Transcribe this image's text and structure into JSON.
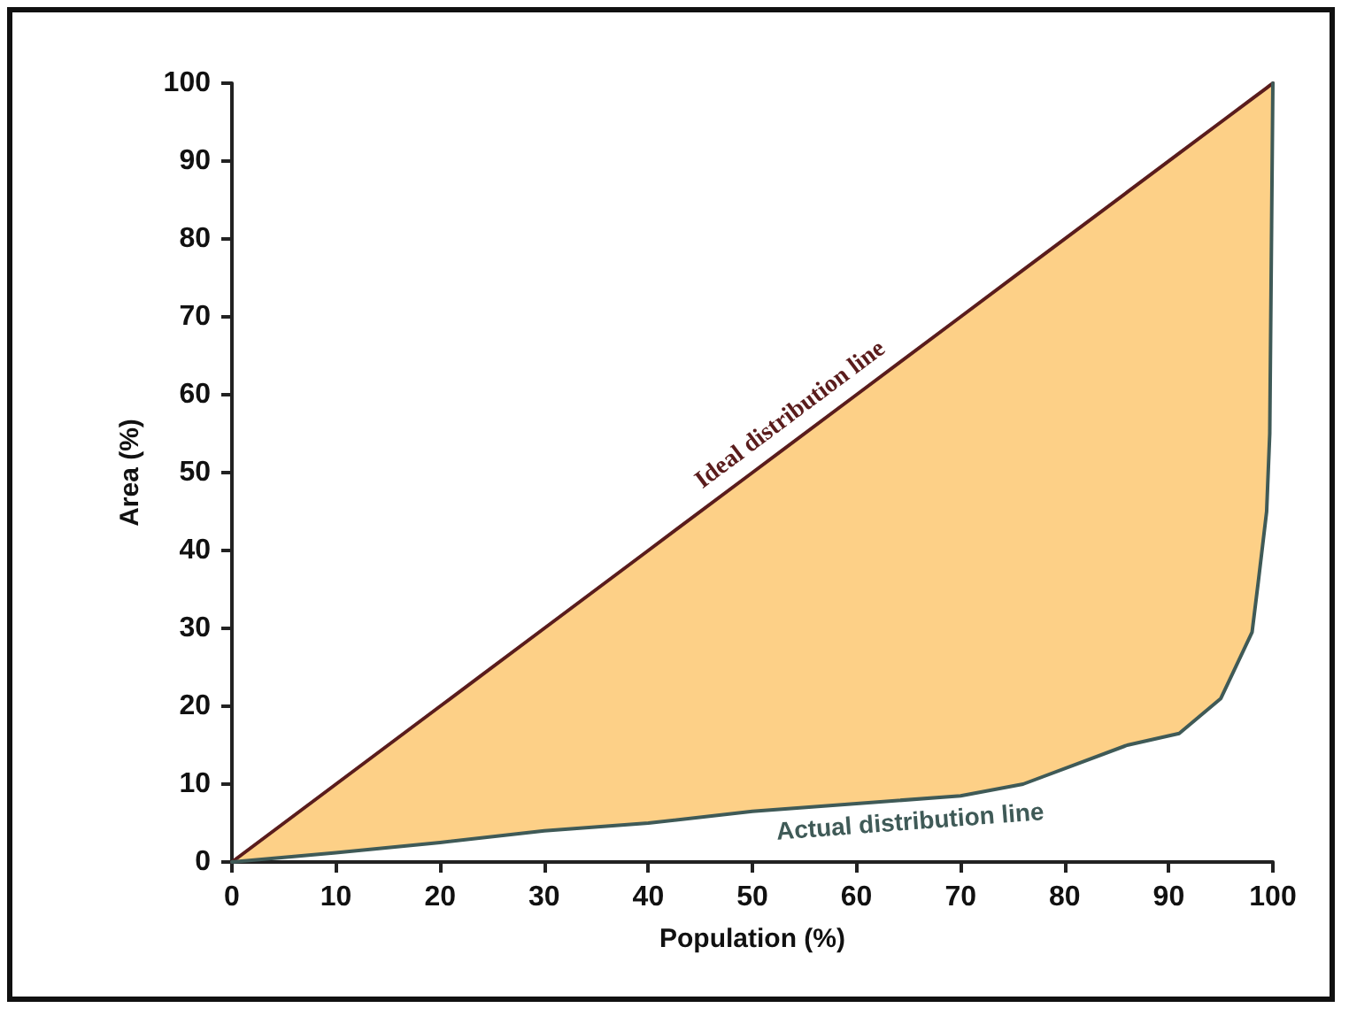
{
  "chart_data": {
    "type": "line",
    "xlabel": "Population (%)",
    "ylabel": "Area (%)",
    "x": [
      0,
      10,
      20,
      30,
      40,
      50,
      60,
      70,
      76,
      86,
      91,
      95,
      98,
      98.6,
      99.4,
      99.7,
      100
    ],
    "series": [
      {
        "name": "Ideal distribution line",
        "color": "#5a1c1c",
        "values": [
          0,
          10,
          20,
          30,
          40,
          50,
          60,
          70,
          76,
          86,
          91,
          95,
          98,
          98.6,
          99.4,
          99.7,
          100
        ],
        "lower": [
          0,
          1.2,
          2.5,
          4,
          5,
          6.5,
          7.5,
          8.5,
          10,
          15,
          16.5,
          21,
          29.5,
          36,
          45,
          55,
          100
        ],
        "upper": [
          0,
          10,
          20,
          30,
          40,
          50,
          60,
          70,
          76,
          86,
          91,
          95,
          98,
          98.6,
          99.4,
          99.7,
          100
        ]
      },
      {
        "name": "Actual distribution line",
        "color": "#3f5a57",
        "values": [
          0,
          1.2,
          2.5,
          4,
          5,
          6.5,
          7.5,
          8.5,
          10,
          15,
          16.5,
          21,
          29.5,
          36,
          45,
          55,
          100
        ]
      }
    ],
    "xlim": [
      0,
      100
    ],
    "xticks": [
      0,
      10,
      20,
      30,
      40,
      50,
      60,
      70,
      80,
      90,
      100
    ],
    "ylim": [
      0,
      100
    ],
    "yticks": [
      0,
      10,
      20,
      30,
      40,
      50,
      60,
      70,
      80,
      90,
      100
    ],
    "grid": false,
    "legend": false,
    "marker": "none",
    "line_style": "solid"
  }
}
